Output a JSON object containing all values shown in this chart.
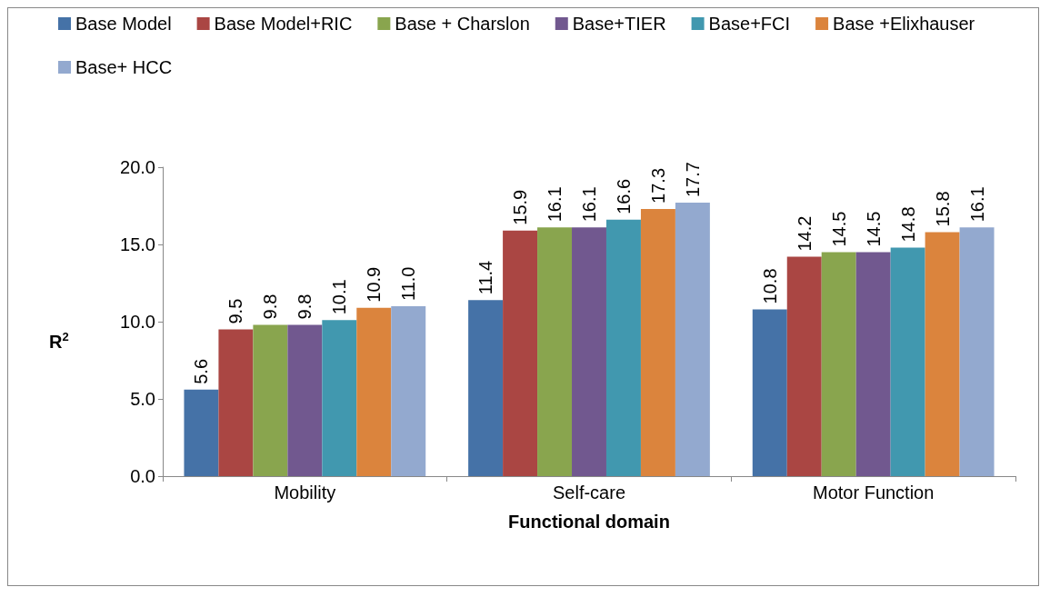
{
  "chart_data": {
    "type": "bar",
    "xlabel": "Functional domain",
    "ylabel": "R$^{2}$",
    "categories": [
      "Mobility",
      "Self-care",
      "Motor Function"
    ],
    "series": [
      {
        "name": "Base Model",
        "color": "#4572a7",
        "values": [
          5.6,
          11.4,
          10.8
        ],
        "value_labels": [
          "5.6",
          "11.4",
          "10.8"
        ]
      },
      {
        "name": "Base Model+RIC",
        "color": "#aa4643",
        "values": [
          9.5,
          15.9,
          14.2
        ],
        "value_labels": [
          "9.5",
          "15.9",
          "14.2"
        ]
      },
      {
        "name": "Base + Charslon",
        "color": "#89a54e",
        "values": [
          9.8,
          16.1,
          14.5
        ],
        "value_labels": [
          "9.8",
          "16.1",
          "14.5"
        ]
      },
      {
        "name": "Base+TIER",
        "color": "#71588f",
        "values": [
          9.8,
          16.1,
          14.5
        ],
        "value_labels": [
          "9.8",
          "16.1",
          "14.5"
        ]
      },
      {
        "name": "Base+FCI",
        "color": "#4198af",
        "values": [
          10.1,
          16.6,
          14.8
        ],
        "value_labels": [
          "10.1",
          "16.6",
          "14.8"
        ]
      },
      {
        "name": "Base +Elixhauser",
        "color": "#db843d",
        "values": [
          10.9,
          17.3,
          15.8
        ],
        "value_labels": [
          "10.9",
          "17.3",
          "15.8"
        ]
      },
      {
        "name": "Base+ HCC",
        "color": "#93a9cf",
        "values": [
          11.0,
          17.7,
          16.1
        ],
        "value_labels": [
          "11.0",
          "17.7",
          "16.1"
        ]
      }
    ],
    "ylim": [
      0,
      20
    ],
    "yticks": [
      {
        "value": 0,
        "label": "0.0"
      },
      {
        "value": 5,
        "label": "5.0"
      },
      {
        "value": 10,
        "label": "10.0"
      },
      {
        "value": 15,
        "label": "15.0"
      },
      {
        "value": 20,
        "label": "20.0"
      }
    ],
    "grid": false,
    "legend": "top left"
  }
}
